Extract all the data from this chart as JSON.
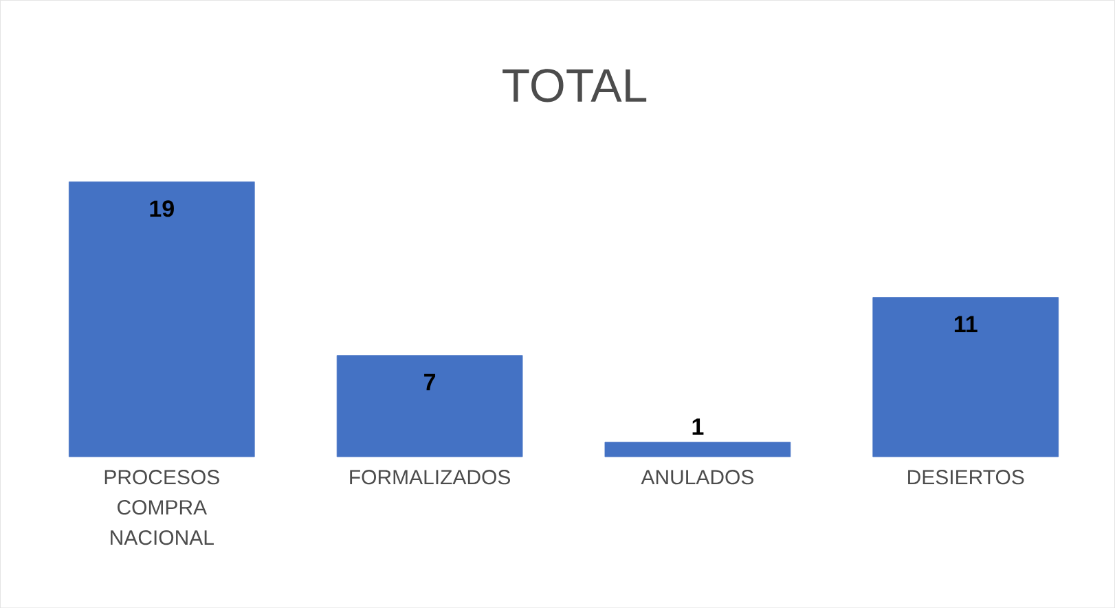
{
  "chart_data": {
    "type": "bar",
    "title": "TOTAL",
    "categories": [
      "PROCESOS COMPRA NACIONAL",
      "FORMALIZADOS",
      "ANULADOS",
      "DESIERTOS"
    ],
    "values": [
      19,
      7,
      1,
      11
    ],
    "color": "#4472c4",
    "data_labels": true
  }
}
